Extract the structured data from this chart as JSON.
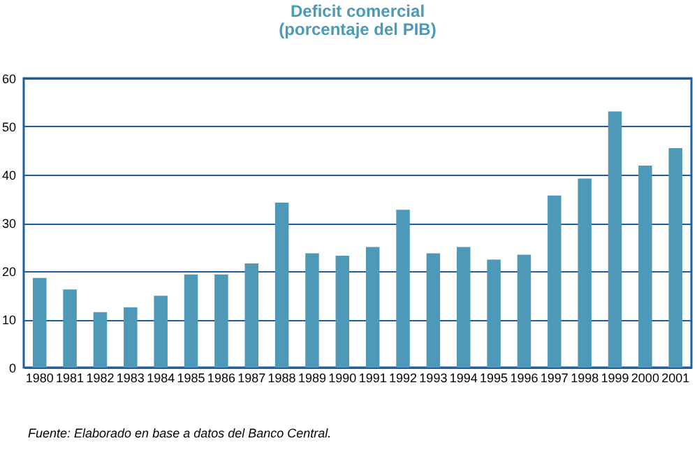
{
  "chart_data": {
    "type": "bar",
    "title": "Deficit comercial",
    "subtitle": "(porcentaje del PIB)",
    "categories": [
      "1980",
      "1981",
      "1982",
      "1983",
      "1984",
      "1985",
      "1986",
      "1987",
      "1988",
      "1989",
      "1990",
      "1991",
      "1992",
      "1993",
      "1994",
      "1995",
      "1996",
      "1997",
      "1998",
      "1999",
      "2000",
      "2001"
    ],
    "values": [
      18.6,
      16.2,
      11.5,
      12.5,
      14.9,
      19.3,
      19.3,
      21.6,
      34.2,
      23.7,
      23.2,
      25.0,
      32.7,
      23.7,
      25.0,
      22.4,
      23.4,
      35.7,
      39.2,
      53.1,
      41.9,
      45.5
    ],
    "color": "#4f99b8",
    "ylim": [
      0,
      60
    ],
    "yticks": [
      0,
      10,
      20,
      30,
      40,
      50,
      60
    ],
    "grid": "y",
    "annotations": [
      "Fuente: Elaborado en base a datos del Banco Central."
    ]
  }
}
